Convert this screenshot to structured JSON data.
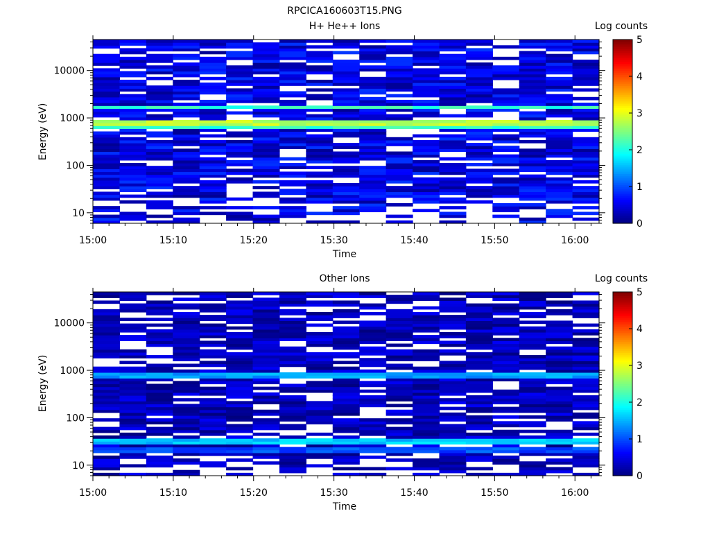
{
  "figure": {
    "title": "RPCICA160603T15.PNG"
  },
  "colorbar": {
    "colors": [
      "#00007f",
      "#0000ff",
      "#007fff",
      "#00ffff",
      "#7fff7f",
      "#ffff00",
      "#ff7f00",
      "#ff0000",
      "#7f0000"
    ],
    "ticks": [
      "0",
      "1",
      "2",
      "3",
      "4",
      "5"
    ],
    "range": [
      0,
      5
    ]
  },
  "chart_data": [
    {
      "type": "heatmap",
      "title": "H+ He++ Ions",
      "xlabel": "Time",
      "ylabel": "Energy (eV)",
      "colorbar_label": "Log counts",
      "x_tick_labels": [
        "15:00",
        "15:10",
        "15:20",
        "15:30",
        "15:40",
        "15:50",
        "16:00"
      ],
      "x_range_minutes": [
        0,
        63
      ],
      "y_scale": "log",
      "y_tick_labels": [
        "10",
        "100",
        "1000",
        "10000"
      ],
      "y_range": [
        6,
        45000
      ],
      "time_bins": 19,
      "energy_band_peak": [
        {
          "energy_eV": 1700,
          "log_counts": 2.3
        },
        {
          "energy_eV": 830,
          "log_counts": 3.0
        },
        {
          "energy_eV": 700,
          "log_counts": 2.3
        }
      ],
      "background_log_counts": [
        0.1,
        0.9
      ],
      "low_energy_cutoff_eV": 20
    },
    {
      "type": "heatmap",
      "title": "Other Ions",
      "xlabel": "Time",
      "ylabel": "Energy (eV)",
      "colorbar_label": "Log counts",
      "x_tick_labels": [
        "15:00",
        "15:10",
        "15:20",
        "15:30",
        "15:40",
        "15:50",
        "16:00"
      ],
      "x_range_minutes": [
        0,
        63
      ],
      "y_scale": "log",
      "y_tick_labels": [
        "10",
        "100",
        "1000",
        "10000"
      ],
      "y_range": [
        6,
        45000
      ],
      "time_bins": 19,
      "energy_band_peak": [
        {
          "energy_eV": 830,
          "log_counts": 1.6
        },
        {
          "energy_eV": 30,
          "log_counts": 1.8
        },
        {
          "energy_eV": 20,
          "log_counts": 1.2
        }
      ],
      "background_log_counts": [
        0.0,
        0.6
      ],
      "low_energy_cutoff_eV": 10
    }
  ]
}
